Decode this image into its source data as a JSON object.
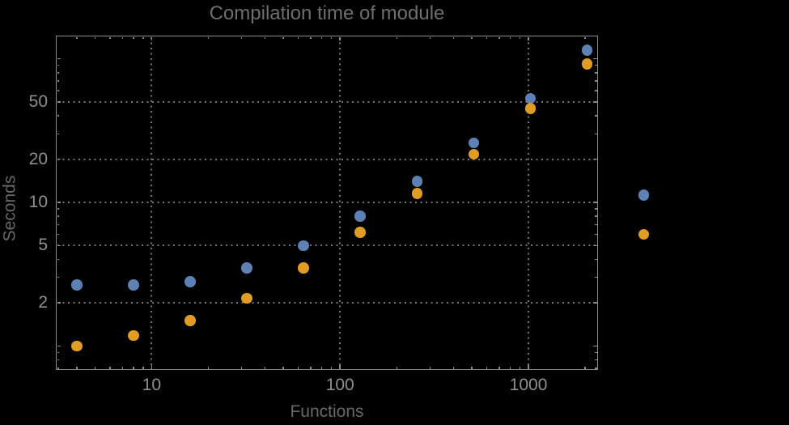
{
  "chart_data": {
    "type": "scatter",
    "title": "Compilation time of module",
    "xlabel": "Functions",
    "ylabel": "Seconds",
    "x_scale": "log",
    "y_scale": "log",
    "xlim": [
      3.1,
      2340
    ],
    "ylim": [
      0.68,
      145
    ],
    "x_ticks": [
      {
        "value": 10,
        "label": "10"
      },
      {
        "value": 100,
        "label": "100"
      },
      {
        "value": 1000,
        "label": "1000"
      }
    ],
    "y_ticks": [
      {
        "value": 2,
        "label": "2"
      },
      {
        "value": 5,
        "label": "5"
      },
      {
        "value": 10,
        "label": "10"
      },
      {
        "value": 20,
        "label": "20"
      },
      {
        "value": 50,
        "label": "50"
      }
    ],
    "grid": {
      "style": "dotted",
      "x_values": [
        10,
        100,
        1000
      ],
      "y_values": [
        2,
        5,
        10,
        20,
        50
      ]
    },
    "legend": null,
    "x": [
      4,
      8,
      16,
      32,
      64,
      128,
      256,
      512,
      1024,
      2048,
      4096
    ],
    "series": [
      {
        "name": "blue",
        "color": "#5E81B5",
        "values": [
          2.65,
          2.65,
          2.8,
          3.5,
          5.0,
          8.0,
          14.0,
          26.0,
          53.0,
          115.0,
          11.2
        ]
      },
      {
        "name": "orange",
        "color": "#E19C24",
        "values": [
          1.0,
          1.18,
          1.5,
          2.15,
          3.5,
          6.2,
          11.5,
          21.6,
          45.0,
          92.0,
          6.0
        ]
      }
    ],
    "note": "last data pair (x=4096) is drawn outside the right edge of the plot frame"
  },
  "colors": {
    "background": "#000000",
    "frame": "#8a8a8a",
    "grid": "#757575",
    "tick_label": "#8f8f8f",
    "title": "#6e6e6e",
    "axis_label": "#686868",
    "series_blue": "#5E81B5",
    "series_orange": "#E19C24"
  }
}
